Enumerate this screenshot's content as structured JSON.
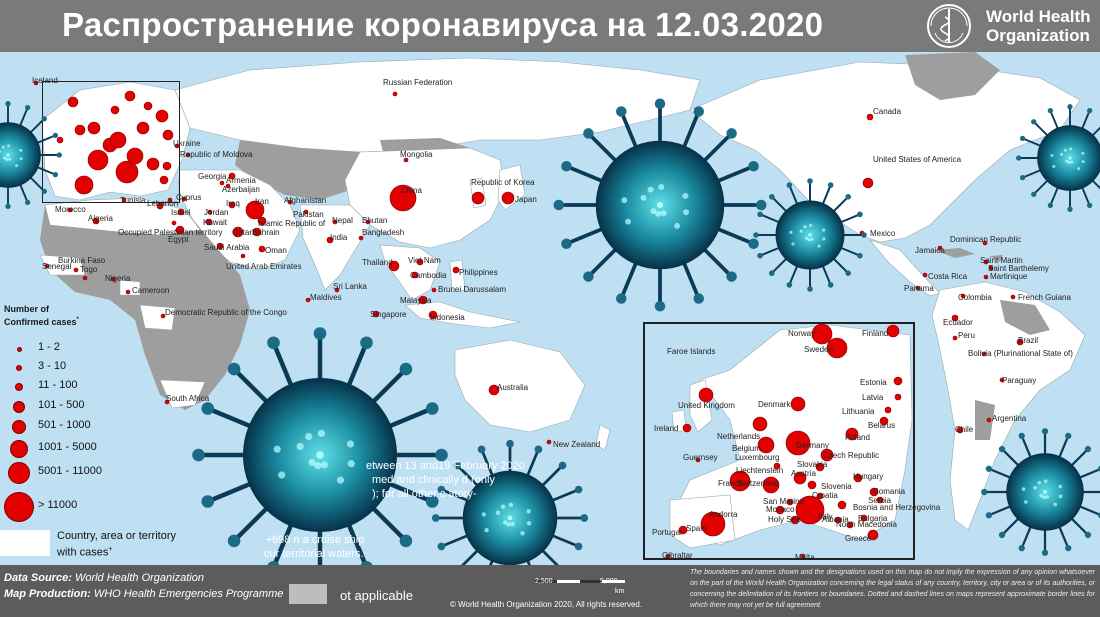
{
  "title": "Распространение коронавируса на 12.03.2020",
  "logo": {
    "name": "World Health Organization",
    "line1": "World Health",
    "line2": "Organization"
  },
  "legend": {
    "title_line1": "Number of",
    "title_line2": "Confirmed cases",
    "title_sup": "*",
    "items": [
      "1 - 2",
      "3 - 10",
      "11 - 100",
      "101 - 500",
      "501 - 1000",
      "1001 - 5000",
      "5001 - 11000",
      "> 11000"
    ],
    "area_label_line1": "Country, area or territory",
    "area_label_line2": "with cases",
    "area_label_sup": "+"
  },
  "obscured_note": {
    "line1": "etween 13 and19 February 2020",
    "line2": "med and clinically      d (only",
    "line3": "); for all other c          atory-",
    "line4": "698              n a cruise ship",
    "line5": "cur              territorial waters.",
    "line4_prefix": "+"
  },
  "footer": {
    "source_label": "Data Source",
    "source_value": "World Health Organization",
    "production_label": "Map Production",
    "production_value": "WHO Health Emergencies Programme",
    "not_applicable": "ot applicable",
    "copyright": "© World Health Organization  2020,  All rights reserved.",
    "scale_labels": [
      "2,500",
      "5,000"
    ],
    "scale_unit": "km",
    "disclaimer": "The boundaries and names shown and the designations used on this map do not imply the expression of any opinion whatsoever on the part of the World Health Organization concerning the legal status of any country, territory, city or area or of its authorities, or concerning the delimitation of its frontiers or boundaries. Dotted and dashed lines on maps represent approximate border lines for which there may not yet be full agreement."
  },
  "colors": {
    "ocean": "#bfe0f2",
    "affected_land": "#ffffff",
    "unaffected_land": "#9e9e9e",
    "case_marker": "#e20000",
    "banner": "#7a7a7a",
    "virus": "#1a8aa0"
  },
  "world_labels": [
    "Iceland",
    "Russian Federation",
    "Mongolia",
    "China",
    "Republic of Korea",
    "Japan",
    "Canada",
    "United States of America",
    "Mexico",
    "Ukraine",
    "Republic of Moldova",
    "Georgia",
    "Armenia",
    "Azerbaijan",
    "Afghanistan",
    "Pakistan",
    "Nepal",
    "Bhutan",
    "India",
    "Bangladesh",
    "Iran",
    "Islamic Republic of",
    "Iraq",
    "Jordan",
    "Israel",
    "Kuwait",
    "Qatar",
    "Bahrain",
    "Oman",
    "Saudi Arabia",
    "United Arab Emirates",
    "Lebanon",
    "Cyprus",
    "Occupied Palestinian territory",
    "Egypt",
    "Tunisia",
    "Morocco",
    "Algeria",
    "Senegal",
    "Burkina Faso",
    "Togo",
    "Nigeria",
    "Cameroon",
    "Democratic Republic of the Congo",
    "South Africa",
    "Thailand",
    "Viet Nam",
    "Cambodia",
    "Philippines",
    "Brunei Darussalam",
    "Malaysia",
    "Singapore",
    "Indonesia",
    "Sri Lanka",
    "Maldives",
    "Australia",
    "New Zealand",
    "Jamaica",
    "Dominican Republic",
    "Saint Martin",
    "Saint Barthelemy",
    "Martinique",
    "Costa Rica",
    "Panama",
    "Colombia",
    "French Guiana",
    "Ecuador",
    "Peru",
    "Brazil",
    "Bolivia (Plurinational State of)",
    "Paraguay",
    "Chile",
    "Argentina"
  ],
  "europe_labels": [
    "Faroe Islands",
    "Norway",
    "Sweden",
    "Finland",
    "Estonia",
    "Latvia",
    "Lithuania",
    "United Kingdom",
    "Denmark",
    "Ireland",
    "Netherlands",
    "Belgium",
    "Luxembourg",
    "Germany",
    "Poland",
    "Belarus",
    "Guernsey",
    "Czech Republic",
    "Slovakia",
    "Liechtenstein",
    "France",
    "Switzerland",
    "Austria",
    "Hungary",
    "Slovenia",
    "Croatia",
    "Romania",
    "San Marino",
    "Monaco",
    "Bosnia and Herzegovina",
    "Serbia",
    "Holy See",
    "Italy",
    "Bulgaria",
    "Andorra",
    "Albania",
    "North Macedonia",
    "Portugal",
    "Spain",
    "Greece",
    "Gibraltar",
    "Malta"
  ]
}
